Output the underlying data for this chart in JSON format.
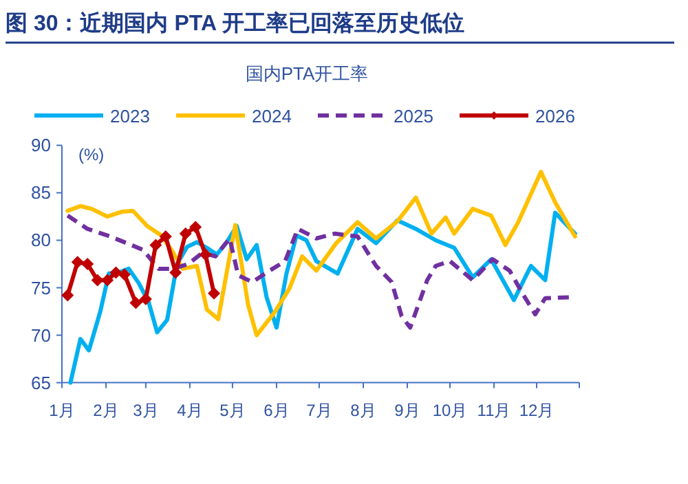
{
  "chart_data": {
    "type": "line",
    "title": "图 30：近期国内 PTA 开工率已回落至历史低位",
    "subtitle": "国内PTA开工率",
    "ylabel": "(%)",
    "xlim": [
      "--01-01",
      "--12-31"
    ],
    "xticks": [
      {
        "value": "--01-01",
        "label": "1月"
      },
      {
        "value": "--02-01",
        "label": "2月"
      },
      {
        "value": "--03-01",
        "label": "3月"
      },
      {
        "value": "--04-01",
        "label": "4月"
      },
      {
        "value": "--05-01",
        "label": "5月"
      },
      {
        "value": "--06-01",
        "label": "6月"
      },
      {
        "value": "--07-01",
        "label": "7月"
      },
      {
        "value": "--08-01",
        "label": "8月"
      },
      {
        "value": "--09-01",
        "label": "9月"
      },
      {
        "value": "--10-01",
        "label": "10月"
      },
      {
        "value": "--11-01",
        "label": "11月"
      },
      {
        "value": "--12-01",
        "label": "12月"
      },
      {
        "value": "--12-31",
        "label": null
      }
    ],
    "ylim": [
      65,
      90
    ],
    "yticks": [
      65,
      70,
      75,
      80,
      85,
      90
    ],
    "grid": false,
    "legend": "top",
    "series": [
      {
        "name": "2023",
        "color": "#00b0f0",
        "x": [
          "--01-07",
          "--01-14",
          "--01-20",
          "--01-28",
          "--02-03",
          "--02-10",
          "--02-17",
          "--02-24",
          "--03-03",
          "--03-09",
          "--03-16",
          "--03-23",
          "--03-30",
          "--04-06",
          "--04-13",
          "--04-20",
          "--04-27",
          "--05-04",
          "--05-11",
          "--05-18",
          "--05-25",
          "--06-01",
          "--06-08",
          "--06-15",
          "--06-22",
          "--06-29",
          "--07-14",
          "--07-28",
          "--08-10",
          "--08-25",
          "--09-07",
          "--09-21",
          "--10-04",
          "--10-17",
          "--10-30",
          "--11-15",
          "--11-27",
          "--12-07",
          "--12-14",
          "--12-28"
        ],
        "values": [
          65,
          69.6,
          68.4,
          72.5,
          76.5,
          76.6,
          77,
          75.5,
          73.5,
          70.3,
          71.6,
          77.5,
          79.3,
          79.8,
          79.2,
          78.5,
          79.8,
          81.5,
          78,
          79.5,
          74,
          70.8,
          76.5,
          80.5,
          80,
          77.8,
          76.5,
          81.2,
          79.7,
          82.1,
          81.2,
          80,
          79.2,
          76.1,
          78,
          73.7,
          77.3,
          75.8,
          82.9,
          80.7
        ]
      },
      {
        "name": "2024",
        "color": "#ffc000",
        "x": [
          "--01-05",
          "--01-14",
          "--01-22",
          "--02-02",
          "--02-12",
          "--02-20",
          "--03-02",
          "--03-12",
          "--03-19",
          "--03-27",
          "--04-06",
          "--04-13",
          "--04-21",
          "--05-03",
          "--05-12",
          "--05-18",
          "--05-31",
          "--06-10",
          "--06-19",
          "--06-29",
          "--07-13",
          "--07-28",
          "--08-10",
          "--08-25",
          "--09-07",
          "--09-18",
          "--09-28",
          "--10-04",
          "--10-17",
          "--10-30",
          "--11-09",
          "--11-18",
          "--12-04",
          "--12-14",
          "--12-28"
        ],
        "values": [
          83.1,
          83.6,
          83.3,
          82.5,
          83,
          83.1,
          81.5,
          80.5,
          79,
          77,
          77.3,
          72.7,
          71.7,
          81.6,
          73.2,
          70,
          72.5,
          74.9,
          78.3,
          76.8,
          79.7,
          81.9,
          80.2,
          82,
          84.5,
          80.7,
          82.4,
          80.7,
          83.3,
          82.6,
          79.5,
          81.9,
          87.2,
          84,
          80.4
        ]
      },
      {
        "name": "2025",
        "color": "#7030a0",
        "line_style": "dashed",
        "x": [
          "--01-05",
          "--01-19",
          "--02-04",
          "--02-27",
          "--03-10",
          "--03-20",
          "--03-31",
          "--04-10",
          "--04-19",
          "--04-29",
          "--05-05",
          "--05-15",
          "--05-25",
          "--06-07",
          "--06-16",
          "--06-29",
          "--07-12",
          "--07-28",
          "--08-10",
          "--08-21",
          "--08-28",
          "--09-03",
          "--09-15",
          "--09-21",
          "--10-01",
          "--10-17",
          "--10-31",
          "--11-12",
          "--11-21",
          "--11-30",
          "--12-07",
          "--12-27"
        ],
        "values": [
          82.6,
          81.2,
          80.4,
          79,
          77,
          77,
          77.5,
          78.7,
          78.3,
          80.2,
          76.3,
          75.6,
          76.6,
          77.8,
          81.2,
          80.2,
          80.7,
          80.4,
          77.3,
          75.6,
          72,
          70.8,
          75.8,
          77.3,
          77.8,
          75.8,
          78,
          76.8,
          74.4,
          72.2,
          73.9,
          74
        ]
      },
      {
        "name": "2026",
        "color": "#c00000",
        "marker": "diamond",
        "x": [
          "--01-05",
          "--01-12",
          "--01-19",
          "--01-26",
          "--02-02",
          "--02-08",
          "--02-14",
          "--02-22",
          "--03-01",
          "--03-08",
          "--03-15",
          "--03-22",
          "--03-29",
          "--04-05",
          "--04-12",
          "--04-18"
        ],
        "values": [
          74.2,
          77.7,
          77.5,
          75.8,
          75.8,
          76.6,
          76.4,
          73.4,
          73.8,
          79.5,
          80.4,
          76.6,
          80.7,
          81.4,
          78.5,
          74.4
        ]
      }
    ]
  }
}
